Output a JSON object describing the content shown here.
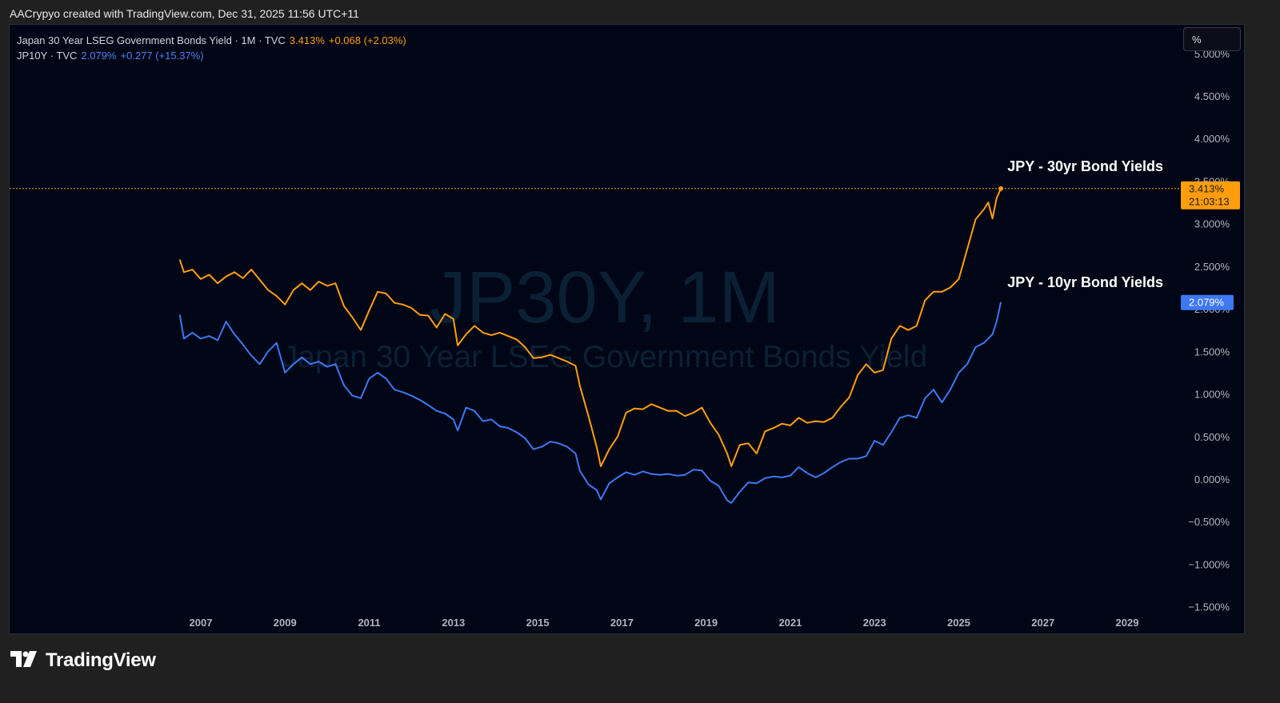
{
  "header": {
    "attribution": "AACrypyo created with TradingView.com, Dec 31, 2025 11:56 UTC+11"
  },
  "legend": {
    "series1": {
      "name": "Japan 30 Year LSEG Government Bonds Yield · 1M · TVC",
      "value": "3.413%",
      "change": "+0.068 (+2.03%)"
    },
    "series2": {
      "name": "JP10Y · TVC",
      "value": "2.079%",
      "change": "+0.277 (+15.37%)"
    }
  },
  "scale_button": "%",
  "watermark": {
    "symbol": "JP30Y, 1M",
    "description": "Japan 30 Year LSEG Government Bonds Yield"
  },
  "annotations": {
    "label30": "JPY - 30yr Bond Yields",
    "label10": "JPY - 10yr Bond Yields"
  },
  "badges": {
    "jp30_value": "3.413%",
    "jp30_countdown": "21:03:13",
    "jp10_value": "2.079%"
  },
  "footer": {
    "brand": "TradingView"
  },
  "colors": {
    "jp30": "#ff9e0d",
    "jp10": "#3d78f5",
    "background": "#010616"
  },
  "icons": {
    "logo": "tradingview-logo-icon"
  },
  "chart_data": {
    "type": "line",
    "x_unit": "year",
    "xlim": [
      2005.45,
      2030.45
    ],
    "ylim": [
      -1.5,
      5.0
    ],
    "x_ticks": [
      "2007",
      "2009",
      "2011",
      "2013",
      "2015",
      "2017",
      "2019",
      "2021",
      "2023",
      "2025",
      "2027",
      "2029"
    ],
    "y_ticks": [
      "5.000%",
      "4.500%",
      "4.000%",
      "3.500%",
      "3.000%",
      "2.500%",
      "2.000%",
      "1.500%",
      "1.000%",
      "0.500%",
      "0.000%",
      "−0.500%",
      "−1.000%",
      "−1.500%"
    ],
    "series": [
      {
        "name": "Japan 30 Year LSEG Government Bonds Yield",
        "color": "#ff9e0d",
        "points": [
          [
            2006.5,
            2.58
          ],
          [
            2006.6,
            2.43
          ],
          [
            2006.8,
            2.46
          ],
          [
            2007.0,
            2.35
          ],
          [
            2007.2,
            2.4
          ],
          [
            2007.4,
            2.3
          ],
          [
            2007.6,
            2.38
          ],
          [
            2007.8,
            2.43
          ],
          [
            2008.0,
            2.36
          ],
          [
            2008.2,
            2.46
          ],
          [
            2008.4,
            2.34
          ],
          [
            2008.6,
            2.22
          ],
          [
            2008.8,
            2.15
          ],
          [
            2009.0,
            2.05
          ],
          [
            2009.2,
            2.22
          ],
          [
            2009.4,
            2.3
          ],
          [
            2009.6,
            2.22
          ],
          [
            2009.8,
            2.32
          ],
          [
            2010.0,
            2.27
          ],
          [
            2010.2,
            2.3
          ],
          [
            2010.4,
            2.03
          ],
          [
            2010.6,
            1.9
          ],
          [
            2010.8,
            1.75
          ],
          [
            2011.0,
            1.98
          ],
          [
            2011.2,
            2.2
          ],
          [
            2011.4,
            2.18
          ],
          [
            2011.6,
            2.07
          ],
          [
            2011.8,
            2.05
          ],
          [
            2012.0,
            2.01
          ],
          [
            2012.2,
            1.93
          ],
          [
            2012.4,
            1.92
          ],
          [
            2012.6,
            1.78
          ],
          [
            2012.8,
            1.94
          ],
          [
            2013.0,
            1.88
          ],
          [
            2013.1,
            1.57
          ],
          [
            2013.3,
            1.7
          ],
          [
            2013.5,
            1.8
          ],
          [
            2013.7,
            1.72
          ],
          [
            2013.9,
            1.69
          ],
          [
            2014.1,
            1.72
          ],
          [
            2014.3,
            1.68
          ],
          [
            2014.5,
            1.64
          ],
          [
            2014.7,
            1.55
          ],
          [
            2014.9,
            1.42
          ],
          [
            2015.1,
            1.43
          ],
          [
            2015.3,
            1.46
          ],
          [
            2015.5,
            1.42
          ],
          [
            2015.7,
            1.38
          ],
          [
            2015.9,
            1.33
          ],
          [
            2016.0,
            1.1
          ],
          [
            2016.2,
            0.75
          ],
          [
            2016.4,
            0.38
          ],
          [
            2016.5,
            0.15
          ],
          [
            2016.7,
            0.35
          ],
          [
            2016.9,
            0.5
          ],
          [
            2017.1,
            0.78
          ],
          [
            2017.3,
            0.83
          ],
          [
            2017.5,
            0.82
          ],
          [
            2017.7,
            0.88
          ],
          [
            2017.9,
            0.84
          ],
          [
            2018.1,
            0.8
          ],
          [
            2018.3,
            0.8
          ],
          [
            2018.5,
            0.74
          ],
          [
            2018.7,
            0.78
          ],
          [
            2018.9,
            0.84
          ],
          [
            2019.1,
            0.66
          ],
          [
            2019.3,
            0.52
          ],
          [
            2019.5,
            0.3
          ],
          [
            2019.6,
            0.15
          ],
          [
            2019.8,
            0.4
          ],
          [
            2020.0,
            0.42
          ],
          [
            2020.2,
            0.3
          ],
          [
            2020.4,
            0.56
          ],
          [
            2020.6,
            0.6
          ],
          [
            2020.8,
            0.65
          ],
          [
            2021.0,
            0.63
          ],
          [
            2021.2,
            0.72
          ],
          [
            2021.4,
            0.66
          ],
          [
            2021.6,
            0.68
          ],
          [
            2021.8,
            0.67
          ],
          [
            2022.0,
            0.72
          ],
          [
            2022.2,
            0.85
          ],
          [
            2022.4,
            0.96
          ],
          [
            2022.6,
            1.22
          ],
          [
            2022.8,
            1.35
          ],
          [
            2023.0,
            1.25
          ],
          [
            2023.2,
            1.28
          ],
          [
            2023.4,
            1.65
          ],
          [
            2023.6,
            1.8
          ],
          [
            2023.8,
            1.75
          ],
          [
            2024.0,
            1.8
          ],
          [
            2024.2,
            2.1
          ],
          [
            2024.4,
            2.2
          ],
          [
            2024.6,
            2.2
          ],
          [
            2024.8,
            2.25
          ],
          [
            2025.0,
            2.35
          ],
          [
            2025.2,
            2.7
          ],
          [
            2025.4,
            3.05
          ],
          [
            2025.6,
            3.17
          ],
          [
            2025.7,
            3.25
          ],
          [
            2025.8,
            3.06
          ],
          [
            2025.9,
            3.3
          ],
          [
            2026.0,
            3.413
          ]
        ]
      },
      {
        "name": "JP10Y",
        "color": "#3d78f5",
        "points": [
          [
            2006.5,
            1.93
          ],
          [
            2006.6,
            1.65
          ],
          [
            2006.8,
            1.72
          ],
          [
            2007.0,
            1.65
          ],
          [
            2007.2,
            1.68
          ],
          [
            2007.4,
            1.63
          ],
          [
            2007.6,
            1.85
          ],
          [
            2007.8,
            1.7
          ],
          [
            2008.0,
            1.58
          ],
          [
            2008.2,
            1.45
          ],
          [
            2008.4,
            1.35
          ],
          [
            2008.6,
            1.5
          ],
          [
            2008.8,
            1.6
          ],
          [
            2009.0,
            1.25
          ],
          [
            2009.2,
            1.35
          ],
          [
            2009.4,
            1.43
          ],
          [
            2009.6,
            1.35
          ],
          [
            2009.8,
            1.38
          ],
          [
            2010.0,
            1.32
          ],
          [
            2010.2,
            1.35
          ],
          [
            2010.4,
            1.1
          ],
          [
            2010.6,
            0.98
          ],
          [
            2010.8,
            0.95
          ],
          [
            2011.0,
            1.18
          ],
          [
            2011.2,
            1.25
          ],
          [
            2011.4,
            1.18
          ],
          [
            2011.6,
            1.05
          ],
          [
            2011.8,
            1.02
          ],
          [
            2012.0,
            0.98
          ],
          [
            2012.2,
            0.93
          ],
          [
            2012.4,
            0.87
          ],
          [
            2012.6,
            0.8
          ],
          [
            2012.8,
            0.77
          ],
          [
            2013.0,
            0.7
          ],
          [
            2013.1,
            0.57
          ],
          [
            2013.3,
            0.84
          ],
          [
            2013.5,
            0.8
          ],
          [
            2013.7,
            0.68
          ],
          [
            2013.9,
            0.7
          ],
          [
            2014.1,
            0.62
          ],
          [
            2014.3,
            0.6
          ],
          [
            2014.5,
            0.55
          ],
          [
            2014.7,
            0.48
          ],
          [
            2014.9,
            0.35
          ],
          [
            2015.1,
            0.38
          ],
          [
            2015.3,
            0.44
          ],
          [
            2015.5,
            0.42
          ],
          [
            2015.7,
            0.38
          ],
          [
            2015.9,
            0.3
          ],
          [
            2016.0,
            0.1
          ],
          [
            2016.2,
            -0.06
          ],
          [
            2016.4,
            -0.13
          ],
          [
            2016.5,
            -0.24
          ],
          [
            2016.7,
            -0.05
          ],
          [
            2016.9,
            0.02
          ],
          [
            2017.1,
            0.08
          ],
          [
            2017.3,
            0.05
          ],
          [
            2017.5,
            0.09
          ],
          [
            2017.7,
            0.06
          ],
          [
            2017.9,
            0.05
          ],
          [
            2018.1,
            0.06
          ],
          [
            2018.3,
            0.04
          ],
          [
            2018.5,
            0.05
          ],
          [
            2018.7,
            0.11
          ],
          [
            2018.9,
            0.1
          ],
          [
            2019.1,
            -0.02
          ],
          [
            2019.3,
            -0.08
          ],
          [
            2019.5,
            -0.25
          ],
          [
            2019.6,
            -0.28
          ],
          [
            2019.8,
            -0.15
          ],
          [
            2020.0,
            -0.04
          ],
          [
            2020.2,
            -0.05
          ],
          [
            2020.4,
            0.01
          ],
          [
            2020.6,
            0.03
          ],
          [
            2020.8,
            0.02
          ],
          [
            2021.0,
            0.04
          ],
          [
            2021.2,
            0.14
          ],
          [
            2021.4,
            0.07
          ],
          [
            2021.6,
            0.02
          ],
          [
            2021.8,
            0.07
          ],
          [
            2022.0,
            0.14
          ],
          [
            2022.2,
            0.2
          ],
          [
            2022.4,
            0.24
          ],
          [
            2022.6,
            0.24
          ],
          [
            2022.8,
            0.27
          ],
          [
            2023.0,
            0.45
          ],
          [
            2023.2,
            0.4
          ],
          [
            2023.4,
            0.55
          ],
          [
            2023.6,
            0.72
          ],
          [
            2023.8,
            0.75
          ],
          [
            2024.0,
            0.72
          ],
          [
            2024.2,
            0.95
          ],
          [
            2024.4,
            1.05
          ],
          [
            2024.6,
            0.9
          ],
          [
            2024.8,
            1.05
          ],
          [
            2025.0,
            1.25
          ],
          [
            2025.2,
            1.35
          ],
          [
            2025.4,
            1.55
          ],
          [
            2025.6,
            1.6
          ],
          [
            2025.8,
            1.7
          ],
          [
            2025.9,
            1.85
          ],
          [
            2026.0,
            2.079
          ]
        ]
      }
    ]
  }
}
